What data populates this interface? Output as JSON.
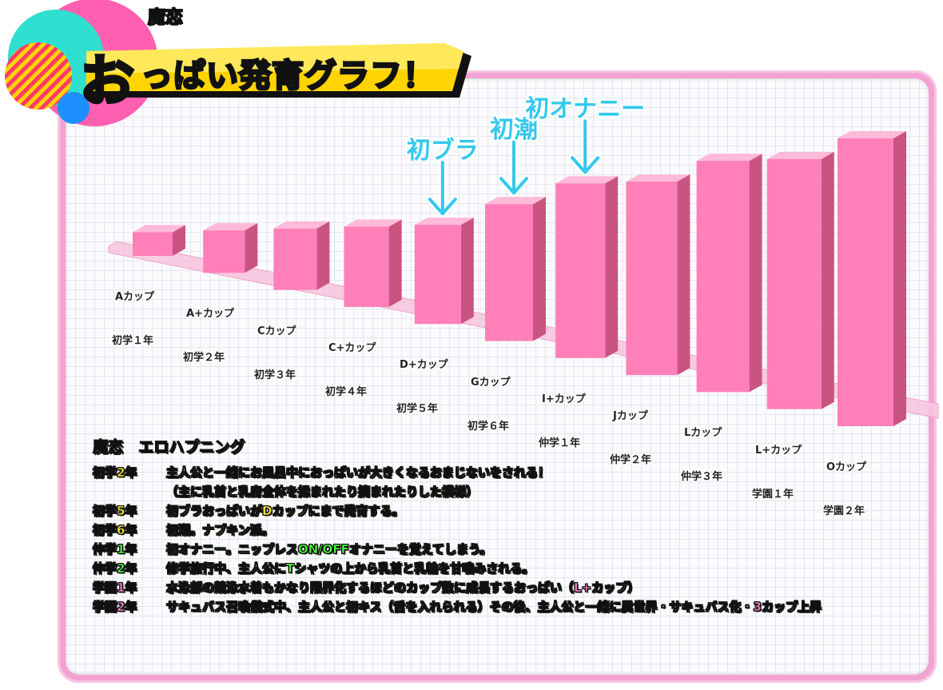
{
  "title": {
    "sub": "魔恋",
    "main_first": "お",
    "main_rest": "っぱい発育グラフ！"
  },
  "colors": {
    "bar_front": "#ff7fb8",
    "bar_side": "#c9547f",
    "bar_top": "#ffb9d9",
    "event_label": "#33c8ec",
    "panel_border": "#f3a3d2"
  },
  "chart_data": {
    "type": "bar",
    "title": "魔恋 おっぱい発育グラフ！",
    "categories": [
      "初学１年",
      "初学２年",
      "初学３年",
      "初学４年",
      "初学５年",
      "初学６年",
      "仲学１年",
      "仲学２年",
      "仲学３年",
      "学園１年",
      "学園２年"
    ],
    "cup_labels": [
      "Aカップ",
      "A+カップ",
      "Cカップ",
      "C+カップ",
      "D+カップ",
      "Gカップ",
      "I+カップ",
      "Jカップ",
      "Lカップ",
      "L+カップ",
      "Oカップ"
    ],
    "values": [
      1,
      2,
      3,
      4,
      5,
      7,
      9,
      10,
      12,
      13,
      15
    ],
    "annotations": [
      {
        "category": "初学５年",
        "text": "初ブラ"
      },
      {
        "category": "初学６年",
        "text": "初潮"
      },
      {
        "category": "仲学１年",
        "text": "初オナニー"
      }
    ],
    "xlabel": "",
    "ylabel": "",
    "grid": true,
    "legend": "none"
  },
  "happenings": {
    "title": "魔恋　エロハプニング",
    "rows": [
      {
        "grade": "初学2年",
        "text": "主人公と一緒にお風呂中におっぱいが大きくなるおまじないをされる！",
        "color": "#ffe833"
      },
      {
        "grade": "",
        "text": "（主に乳首と乳房全体を揉まれたり摘まれたりした模様）",
        "color": "#ffe833"
      },
      {
        "grade": "初学5年",
        "text": "初ブラおっぱいがDカップにまで発育する。",
        "color": "#ffe833"
      },
      {
        "grade": "初学6年",
        "text": "初潮。ナプキン派。",
        "color": "#ffe833"
      },
      {
        "grade": "仲学1年",
        "text": "初オナニー。ニップレスON/OFFオナニーを覚えてしまう。",
        "color": "#4dff3a"
      },
      {
        "grade": "仲学2年",
        "text": "修学旅行中、主人公にTシャツの上から乳首と乳輪を甘噛みされる。",
        "color": "#4dff3a"
      },
      {
        "grade": "学園1年",
        "text": "水泳部の競泳水着もかなり限界化するほどのカップ数に成長するおっぱい（L+カップ）",
        "color": "#ff7fd0"
      },
      {
        "grade": "学園2年",
        "text": "サキュバス召喚儀式中、主人公と初キス（舌を入れられる）その後、主人公と一緒に異世界・サキュバス化・3カップ上昇",
        "color": "#ff7fd0"
      }
    ]
  }
}
